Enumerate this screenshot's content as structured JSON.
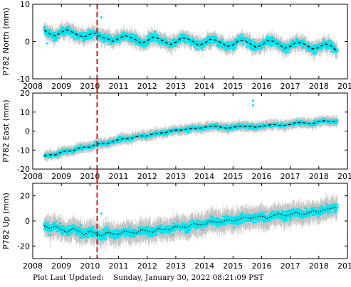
{
  "footer": {
    "label": "Plot Last Updated:",
    "timestamp": "Sunday, January 30, 2022 08:21:09 PST"
  },
  "colors": {
    "points": "#00e5ee",
    "errorbars": "#b8b8b8",
    "model": "#000000",
    "event_line": "#d40000"
  },
  "chart_data": [
    {
      "type": "scatter",
      "ylabel": "P782 North (mm)",
      "xlim": [
        2008,
        2019
      ],
      "ylim": [
        -10,
        10
      ],
      "xticks": [
        2008,
        2009,
        2010,
        2011,
        2012,
        2013,
        2014,
        2015,
        2016,
        2017,
        2018,
        2019
      ],
      "yticks": [
        -10,
        0,
        10
      ],
      "grid": false,
      "event_line_x": 2010.25,
      "model_series": {
        "name": "",
        "x": [
          2008.4,
          2008.6,
          2008.8,
          2009.0,
          2009.2,
          2009.4,
          2009.6,
          2009.8,
          2010.0,
          2010.2,
          2010.4,
          2010.6,
          2010.8,
          2011.0,
          2011.2,
          2011.4,
          2011.6,
          2011.8,
          2012.0,
          2012.2,
          2012.4,
          2012.6,
          2012.8,
          2013.0,
          2013.2,
          2013.4,
          2013.6,
          2013.8,
          2014.0,
          2014.2,
          2014.4,
          2014.6,
          2014.8,
          2015.0,
          2015.2,
          2015.4,
          2015.6,
          2015.8,
          2016.0,
          2016.2,
          2016.4,
          2016.6,
          2016.8,
          2017.0,
          2017.2,
          2017.4,
          2017.6,
          2017.8,
          2018.0,
          2018.2,
          2018.4,
          2018.65
        ],
        "values": [
          3.0,
          2.0,
          1.5,
          2.5,
          3.2,
          2.5,
          1.6,
          1.2,
          2.0,
          2.2,
          1.2,
          0.8,
          0.0,
          0.8,
          1.6,
          1.2,
          0.5,
          -0.5,
          0.2,
          1.2,
          0.8,
          0.0,
          -0.8,
          -0.2,
          1.0,
          0.8,
          0.0,
          -1.0,
          -0.5,
          0.6,
          0.4,
          -0.4,
          -1.3,
          -0.9,
          0.3,
          0.3,
          -0.6,
          -1.5,
          -1.0,
          0.2,
          0.1,
          -0.8,
          -1.8,
          -1.3,
          -0.3,
          -0.3,
          -1.2,
          -2.0,
          -1.6,
          -0.6,
          -1.0,
          -2.6
        ]
      },
      "outliers": [
        [
          2010.4,
          6.5
        ],
        [
          2008.5,
          -0.5
        ]
      ]
    },
    {
      "type": "scatter",
      "ylabel": "P782 East (mm)",
      "xlim": [
        2008,
        2019
      ],
      "ylim": [
        -20,
        20
      ],
      "xticks": [
        2008,
        2009,
        2010,
        2011,
        2012,
        2013,
        2014,
        2015,
        2016,
        2017,
        2018,
        2019
      ],
      "yticks": [
        -20,
        -10,
        0,
        10,
        20
      ],
      "grid": false,
      "event_line_x": 2010.25,
      "model_series": {
        "name": "",
        "x": [
          2008.4,
          2008.6,
          2008.8,
          2009.0,
          2009.2,
          2009.4,
          2009.6,
          2009.8,
          2010.0,
          2010.2,
          2010.4,
          2010.6,
          2010.8,
          2011.0,
          2011.2,
          2011.4,
          2011.6,
          2011.8,
          2012.0,
          2012.2,
          2012.4,
          2012.6,
          2012.8,
          2013.0,
          2013.2,
          2013.4,
          2013.6,
          2013.8,
          2014.0,
          2014.2,
          2014.4,
          2014.6,
          2014.8,
          2015.0,
          2015.2,
          2015.4,
          2015.6,
          2015.8,
          2016.0,
          2016.2,
          2016.4,
          2016.6,
          2016.8,
          2017.0,
          2017.2,
          2017.4,
          2017.6,
          2017.8,
          2018.0,
          2018.2,
          2018.4,
          2018.65
        ],
        "values": [
          -13.0,
          -12.5,
          -12.5,
          -11.0,
          -10.5,
          -10.5,
          -9.0,
          -8.5,
          -8.5,
          -7.0,
          -6.5,
          -6.5,
          -5.5,
          -4.5,
          -4.0,
          -4.0,
          -3.0,
          -2.5,
          -2.5,
          -1.5,
          -1.0,
          -1.0,
          0.0,
          0.5,
          0.5,
          1.0,
          1.5,
          1.5,
          2.0,
          2.5,
          2.5,
          2.0,
          1.5,
          2.0,
          2.5,
          2.5,
          2.5,
          2.0,
          2.5,
          3.0,
          3.5,
          3.0,
          3.0,
          3.5,
          4.5,
          4.5,
          4.0,
          4.0,
          5.0,
          5.5,
          5.0,
          5.0
        ]
      },
      "outliers": [
        [
          2015.7,
          16.0
        ],
        [
          2015.7,
          13.5
        ]
      ]
    },
    {
      "type": "scatter",
      "ylabel": "P782 Up (mm)",
      "xlim": [
        2008,
        2019
      ],
      "ylim": [
        -30,
        30
      ],
      "xticks": [
        2008,
        2009,
        2010,
        2011,
        2012,
        2013,
        2014,
        2015,
        2016,
        2017,
        2018,
        2019
      ],
      "yticks": [
        -20,
        0,
        20
      ],
      "grid": false,
      "event_line_x": 2010.25,
      "model_series": {
        "name": "",
        "x": [
          2008.4,
          2008.6,
          2008.8,
          2009.0,
          2009.2,
          2009.4,
          2009.6,
          2009.8,
          2010.0,
          2010.2,
          2010.4,
          2010.6,
          2010.8,
          2011.0,
          2011.2,
          2011.4,
          2011.6,
          2011.8,
          2012.0,
          2012.2,
          2012.4,
          2012.6,
          2012.8,
          2013.0,
          2013.2,
          2013.4,
          2013.6,
          2013.8,
          2014.0,
          2014.2,
          2014.4,
          2014.6,
          2014.8,
          2015.0,
          2015.2,
          2015.4,
          2015.6,
          2015.8,
          2016.0,
          2016.2,
          2016.4,
          2016.6,
          2016.8,
          2017.0,
          2017.2,
          2017.4,
          2017.6,
          2017.8,
          2018.0,
          2018.2,
          2018.4,
          2018.65
        ],
        "values": [
          -4.0,
          -6.0,
          -4.0,
          -7.0,
          -9.0,
          -6.0,
          -8.0,
          -11.0,
          -8.0,
          -10.0,
          -12.0,
          -9.0,
          -10.0,
          -11.0,
          -8.0,
          -9.0,
          -10.0,
          -7.0,
          -8.0,
          -9.0,
          -6.0,
          -7.0,
          -7.0,
          -4.0,
          -5.0,
          -5.0,
          -2.0,
          -3.0,
          -3.0,
          0.0,
          -1.0,
          -1.0,
          1.0,
          0.0,
          1.0,
          3.0,
          2.0,
          3.0,
          4.0,
          2.0,
          4.0,
          6.0,
          4.0,
          5.0,
          7.0,
          5.0,
          6.0,
          8.0,
          7.0,
          9.0,
          10.0,
          11.0
        ]
      },
      "outliers": [
        [
          2010.4,
          6.0
        ]
      ]
    }
  ]
}
